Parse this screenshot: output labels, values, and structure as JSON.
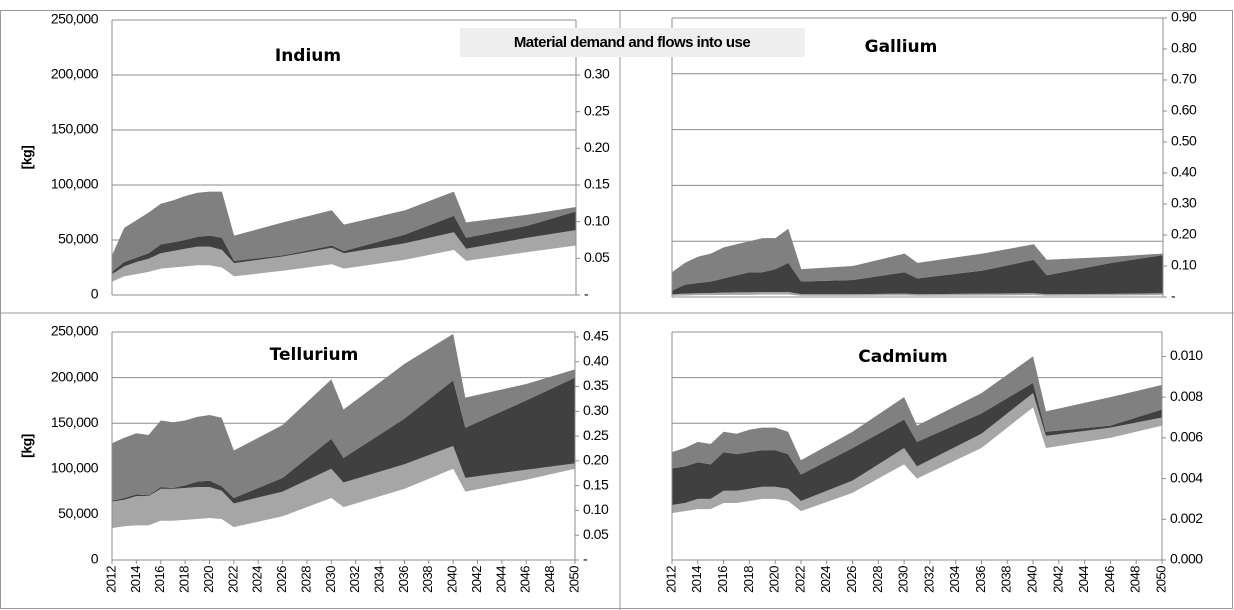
{
  "title": "Material demand and flows into use",
  "chart_data": [
    {
      "type": "stacked-area",
      "title": "Indium",
      "ylabel": "[kg]",
      "x": [
        2012,
        2013,
        2014,
        2015,
        2016,
        2017,
        2018,
        2019,
        2020,
        2021,
        2022,
        2026,
        2030,
        2031,
        2036,
        2040,
        2041,
        2046,
        2050
      ],
      "xlim": [
        2012,
        2050
      ],
      "ylim": [
        0,
        250000
      ],
      "yticks": [
        0,
        {
          "value": 50000,
          "label": "50,000"
        },
        {
          "value": 100000,
          "label": "100,000"
        },
        {
          "value": 150000,
          "label": "150,000"
        },
        {
          "value": 200000,
          "label": "200,000"
        },
        {
          "value": 250000,
          "label": "250,000"
        }
      ],
      "y2lim": [
        0,
        0.375
      ],
      "y2ticks": [
        {
          "value": 0,
          "label": "-"
        },
        0.05,
        {
          "value": 0.1,
          "label": "0.10"
        },
        0.15,
        {
          "value": 0.2,
          "label": "0.20"
        },
        0.25,
        {
          "value": 0.3,
          "label": "0.30"
        }
      ],
      "grid": true,
      "series": [
        {
          "color": "#ffffff",
          "values": [
            12000,
            17000,
            19000,
            21000,
            24000,
            25000,
            26000,
            27000,
            27000,
            25000,
            17000,
            22000,
            28000,
            24000,
            32000,
            41000,
            31000,
            39000,
            45000
          ]
        },
        {
          "color": "#a6a6a6",
          "values": [
            7000,
            9000,
            11000,
            12000,
            14000,
            15000,
            16000,
            17000,
            17000,
            16000,
            12000,
            13000,
            15000,
            14000,
            15000,
            16000,
            11000,
            13000,
            14000
          ]
        },
        {
          "color": "#404040",
          "values": [
            2000,
            4000,
            4000,
            5000,
            8000,
            8000,
            8000,
            9000,
            10000,
            11000,
            2000,
            1000,
            2000,
            2000,
            8000,
            15000,
            10000,
            11000,
            17000
          ]
        },
        {
          "color": "#808080",
          "values": [
            15000,
            31000,
            34000,
            37000,
            37000,
            38000,
            40000,
            40000,
            40000,
            42000,
            23000,
            30000,
            32000,
            24000,
            22000,
            22000,
            14000,
            10000,
            4000
          ]
        }
      ]
    },
    {
      "type": "stacked-area",
      "title": "Gallium",
      "x": [
        2012,
        2013,
        2014,
        2015,
        2016,
        2017,
        2018,
        2019,
        2020,
        2021,
        2022,
        2026,
        2030,
        2031,
        2036,
        2040,
        2041,
        2046,
        2050
      ],
      "xlim": [
        2012,
        2050
      ],
      "y2lim": [
        0,
        0.9
      ],
      "y2ticks": [
        {
          "value": 0,
          "label": "-"
        },
        {
          "value": 0.1,
          "label": "0.10"
        },
        {
          "value": 0.2,
          "label": "0.20"
        },
        {
          "value": 0.3,
          "label": "0.30"
        },
        {
          "value": 0.4,
          "label": "0.40"
        },
        {
          "value": 0.5,
          "label": "0.50"
        },
        {
          "value": 0.6,
          "label": "0.60"
        },
        {
          "value": 0.7,
          "label": "0.70"
        },
        {
          "value": 0.8,
          "label": "0.80"
        },
        {
          "value": 0.9,
          "label": "0.90"
        }
      ],
      "series": [
        {
          "color": "#ffffff",
          "axis": "y2",
          "values": [
            0.004,
            0.005,
            0.006,
            0.006,
            0.007,
            0.007,
            0.007,
            0.008,
            0.008,
            0.008,
            0.004,
            0.004,
            0.005,
            0.004,
            0.005,
            0.006,
            0.004,
            0.005,
            0.006
          ]
        },
        {
          "color": "#a6a6a6",
          "axis": "y2",
          "values": [
            0.005,
            0.006,
            0.006,
            0.007,
            0.007,
            0.008,
            0.008,
            0.008,
            0.008,
            0.008,
            0.005,
            0.005,
            0.006,
            0.005,
            0.006,
            0.006,
            0.005,
            0.005,
            0.006
          ]
        },
        {
          "color": "#404040",
          "axis": "y2",
          "values": [
            0.011,
            0.029,
            0.033,
            0.037,
            0.046,
            0.055,
            0.065,
            0.064,
            0.074,
            0.094,
            0.041,
            0.046,
            0.069,
            0.051,
            0.074,
            0.108,
            0.061,
            0.1,
            0.123
          ]
        },
        {
          "color": "#808080",
          "axis": "y2",
          "values": [
            0.06,
            0.07,
            0.085,
            0.09,
            0.1,
            0.1,
            0.1,
            0.11,
            0.1,
            0.11,
            0.04,
            0.045,
            0.06,
            0.05,
            0.055,
            0.05,
            0.05,
            0.02,
            0.005
          ]
        }
      ]
    },
    {
      "type": "stacked-area",
      "title": "Tellurium",
      "ylabel": "[kg]",
      "x": [
        2012,
        2013,
        2014,
        2015,
        2016,
        2017,
        2018,
        2019,
        2020,
        2021,
        2022,
        2026,
        2030,
        2031,
        2036,
        2040,
        2041,
        2046,
        2050
      ],
      "xlim": [
        2012,
        2050
      ],
      "xticks": [
        2012,
        2014,
        2016,
        2018,
        2020,
        2022,
        2024,
        2026,
        2028,
        2030,
        2032,
        2034,
        2036,
        2038,
        2040,
        2042,
        2044,
        2046,
        2048,
        2050
      ],
      "ylim": [
        0,
        250000
      ],
      "yticks": [
        0,
        {
          "value": 50000,
          "label": "50,000"
        },
        {
          "value": 100000,
          "label": "100,000"
        },
        {
          "value": 150000,
          "label": "150,000"
        },
        {
          "value": 200000,
          "label": "200,000"
        },
        {
          "value": 250000,
          "label": "250,000"
        }
      ],
      "y2lim": [
        0,
        0.46
      ],
      "y2ticks": [
        {
          "value": 0,
          "label": "-"
        },
        0.05,
        {
          "value": 0.1,
          "label": "0.10"
        },
        0.15,
        {
          "value": 0.2,
          "label": "0.20"
        },
        0.25,
        {
          "value": 0.3,
          "label": "0.30"
        },
        0.35,
        {
          "value": 0.4,
          "label": "0.40"
        },
        0.45
      ],
      "grid": true,
      "series": [
        {
          "color": "#ffffff",
          "values": [
            35000,
            37000,
            38000,
            38000,
            43000,
            43000,
            44000,
            45000,
            46000,
            45000,
            36000,
            48000,
            68000,
            58000,
            78000,
            100000,
            75000,
            88000,
            100000
          ]
        },
        {
          "color": "#a6a6a6",
          "values": [
            29000,
            29000,
            32000,
            32000,
            35000,
            35000,
            35000,
            35000,
            34000,
            31000,
            26000,
            27000,
            32000,
            27000,
            27000,
            25000,
            15000,
            11000,
            6000
          ]
        },
        {
          "color": "#404040",
          "values": [
            1000,
            2000,
            2000,
            1000,
            2000,
            1000,
            3000,
            6000,
            7000,
            5000,
            6000,
            15000,
            33000,
            27000,
            50000,
            72000,
            55000,
            76000,
            94000
          ]
        },
        {
          "color": "#808080",
          "values": [
            63000,
            66000,
            67000,
            66000,
            73000,
            72000,
            71000,
            71000,
            72000,
            75000,
            52000,
            58000,
            65000,
            53000,
            60000,
            51000,
            33000,
            18000,
            9000
          ]
        }
      ]
    },
    {
      "type": "stacked-area",
      "title": "Cadmium",
      "x": [
        2012,
        2013,
        2014,
        2015,
        2016,
        2017,
        2018,
        2019,
        2020,
        2021,
        2022,
        2026,
        2030,
        2031,
        2036,
        2040,
        2041,
        2046,
        2050
      ],
      "xlim": [
        2012,
        2050
      ],
      "xticks": [
        2012,
        2014,
        2016,
        2018,
        2020,
        2022,
        2024,
        2026,
        2028,
        2030,
        2032,
        2034,
        2036,
        2038,
        2040,
        2042,
        2044,
        2046,
        2048,
        2050
      ],
      "y2lim": [
        0,
        0.0112
      ],
      "y2ticks": [
        {
          "value": 0,
          "label": "0.000"
        },
        0.002,
        0.004,
        0.006,
        0.008,
        {
          "value": 0.01,
          "label": "0.010"
        }
      ],
      "series": [
        {
          "color": "#ffffff",
          "axis": "y2",
          "values": [
            0.0023,
            0.0024,
            0.0025,
            0.0025,
            0.0028,
            0.0028,
            0.0029,
            0.003,
            0.003,
            0.0029,
            0.0024,
            0.0033,
            0.0047,
            0.004,
            0.0055,
            0.0075,
            0.0055,
            0.006,
            0.0066
          ]
        },
        {
          "color": "#a6a6a6",
          "axis": "y2",
          "values": [
            0.0004,
            0.0004,
            0.0005,
            0.0005,
            0.0006,
            0.0006,
            0.0006,
            0.0006,
            0.0006,
            0.0006,
            0.0005,
            0.0006,
            0.0008,
            0.0006,
            0.0007,
            0.0007,
            0.0006,
            0.0005,
            0.0004
          ]
        },
        {
          "color": "#404040",
          "axis": "y2",
          "values": [
            0.0018,
            0.0018,
            0.0018,
            0.0017,
            0.0019,
            0.0018,
            0.0018,
            0.0018,
            0.0018,
            0.0017,
            0.0013,
            0.0016,
            0.0014,
            0.0012,
            0.001,
            0.0005,
            0.0002,
            0.0001,
            0.0004
          ]
        },
        {
          "color": "#808080",
          "axis": "y2",
          "values": [
            0.0008,
            0.0009,
            0.001,
            0.001,
            0.001,
            0.001,
            0.0011,
            0.0011,
            0.0011,
            0.0011,
            0.0007,
            0.0008,
            0.0011,
            0.0008,
            0.001,
            0.0013,
            0.001,
            0.0014,
            0.0012
          ]
        }
      ]
    }
  ]
}
